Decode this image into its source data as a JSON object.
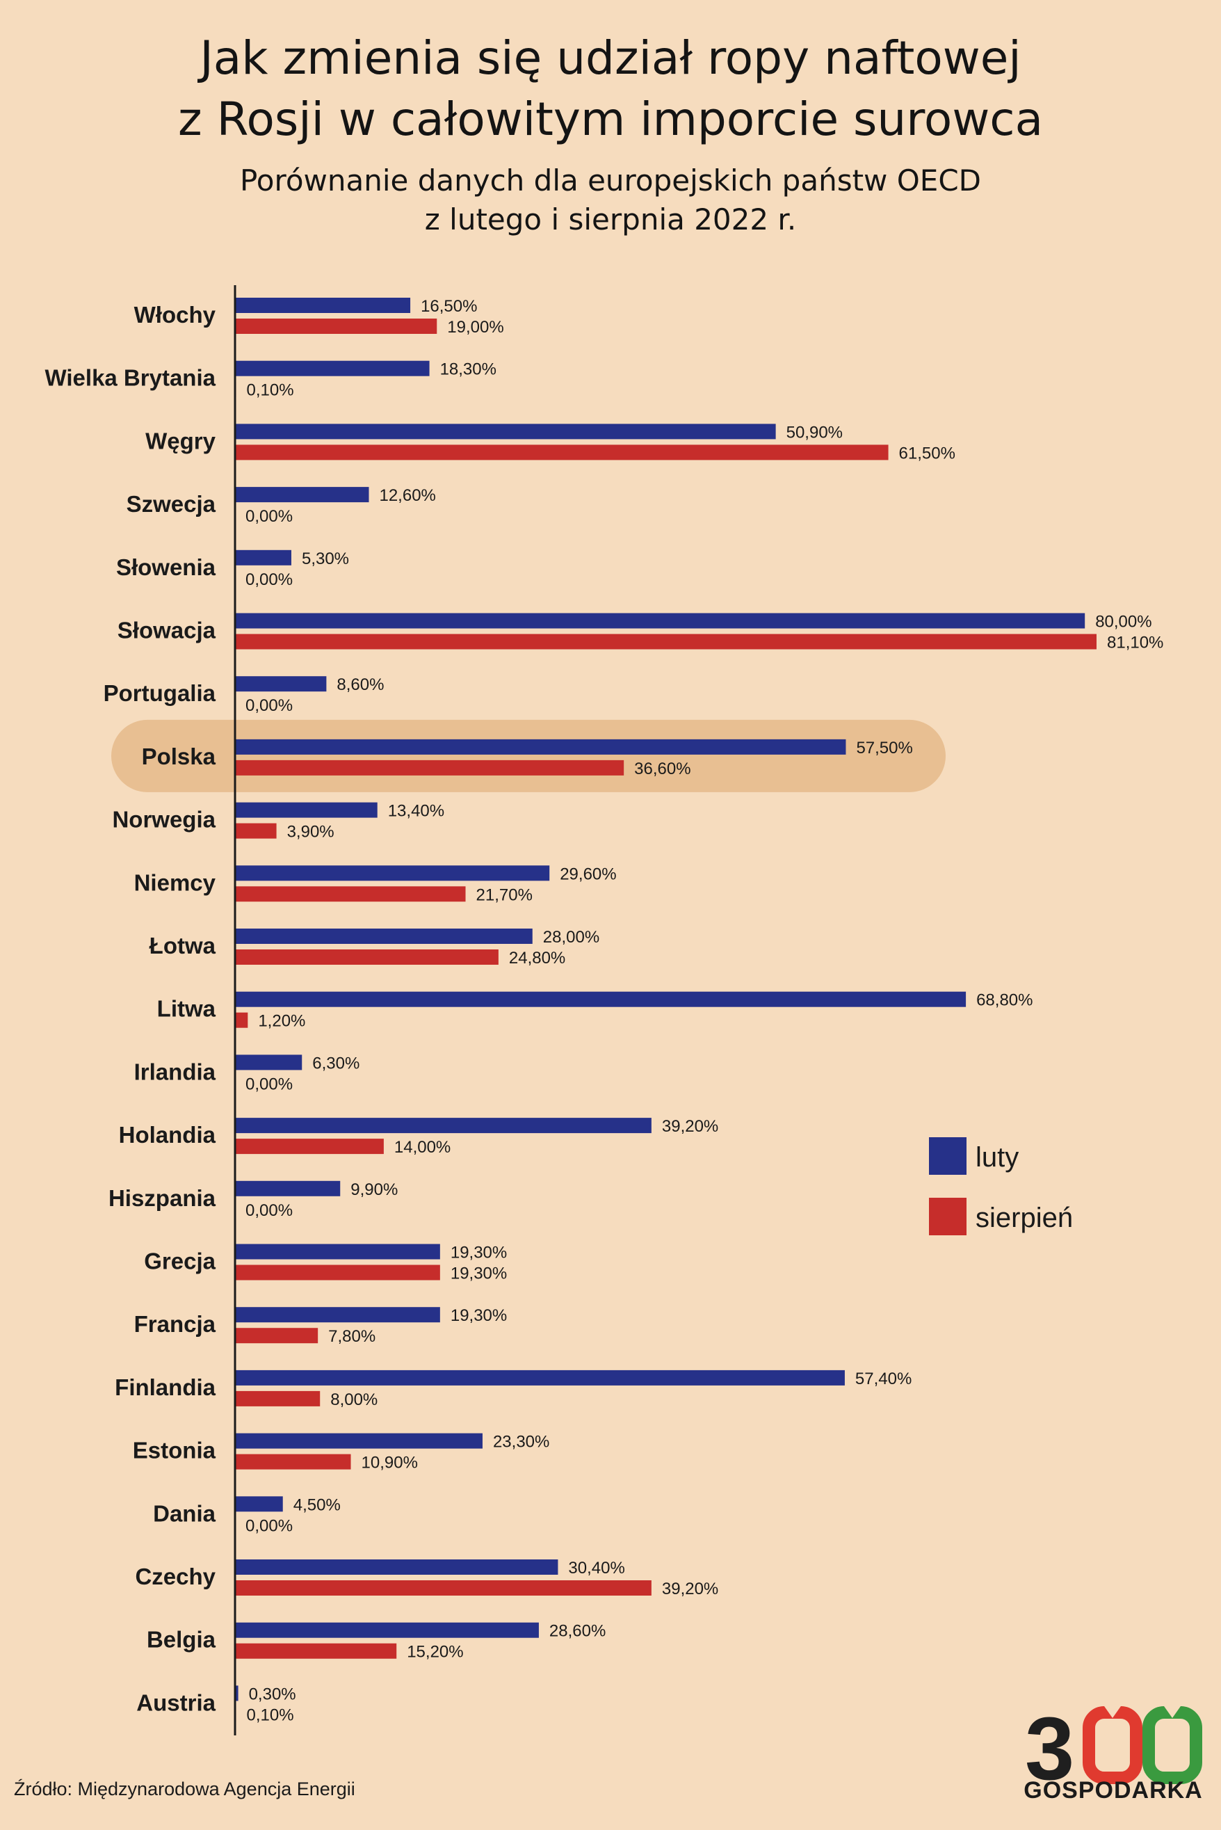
{
  "title": "Jak zmienia się udział ropy naftowej z Rosji w całowitym imporcie surowca",
  "title_lines": [
    "Jak zmienia się udział ropy naftowej",
    "z Rosji w całowitym imporcie surowca"
  ],
  "subtitle_lines": [
    "Porównanie danych dla europejskich państw OECD",
    "z lutego i sierpnia 2022 r."
  ],
  "source": "Źródło: Międzynarodowa Agencja Energii",
  "logo": {
    "number": "300",
    "text": "GOSPODARKA",
    "colors": [
      "#1f1f1f",
      "#e03a2f",
      "#3a9a3f"
    ]
  },
  "colors": {
    "luty": "#263189",
    "sierpien": "#c62d2b",
    "highlight": "#e8bf92",
    "background": "#f6dcbe"
  },
  "chart_data": {
    "type": "bar",
    "orientation": "horizontal",
    "categories": [
      "Włochy",
      "Wielka Brytania",
      "Węgry",
      "Szwecja",
      "Słowenia",
      "Słowacja",
      "Portugalia",
      "Polska",
      "Norwegia",
      "Niemcy",
      "Łotwa",
      "Litwa",
      "Irlandia",
      "Holandia",
      "Hiszpania",
      "Grecja",
      "Francja",
      "Finlandia",
      "Estonia",
      "Dania",
      "Czechy",
      "Belgia",
      "Austria"
    ],
    "highlight_category": "Polska",
    "series": [
      {
        "name": "luty",
        "color": "#263189",
        "values": [
          16.5,
          18.3,
          50.9,
          12.6,
          5.3,
          80.0,
          8.6,
          57.5,
          13.4,
          29.6,
          28.0,
          68.8,
          6.3,
          39.2,
          9.9,
          19.3,
          19.3,
          57.4,
          23.3,
          4.5,
          30.4,
          28.6,
          0.3
        ],
        "labels": [
          "16,50%",
          "18,30%",
          "50,90%",
          "12,60%",
          "5,30%",
          "80,00%",
          "8,60%",
          "57,50%",
          "13,40%",
          "29,60%",
          "28,00%",
          "68,80%",
          "6,30%",
          "39,20%",
          "9,90%",
          "19,30%",
          "19,30%",
          "57,40%",
          "23,30%",
          "4,50%",
          "30,40%",
          "28,60%",
          "0,30%"
        ]
      },
      {
        "name": "sierpień",
        "color": "#c62d2b",
        "values": [
          19.0,
          0.1,
          61.5,
          0.0,
          0.0,
          81.1,
          0.0,
          36.6,
          3.9,
          21.7,
          24.8,
          1.2,
          0.0,
          14.0,
          0.0,
          19.3,
          7.8,
          8.0,
          10.9,
          0.0,
          39.2,
          15.2,
          0.1
        ],
        "labels": [
          "19,00%",
          "0,10%",
          "61,50%",
          "0,00%",
          "0,00%",
          "81,10%",
          "0,00%",
          "36,60%",
          "3,90%",
          "21,70%",
          "24,80%",
          "1,20%",
          "0,00%",
          "14,00%",
          "0,00%",
          "19,30%",
          "7,80%",
          "8,00%",
          "10,90%",
          "0,00%",
          "39,20%",
          "15,20%",
          "0,10%"
        ]
      }
    ],
    "xlim": [
      0,
      81.1
    ],
    "legend": {
      "position": "right",
      "entries": [
        "luty",
        "sierpień"
      ]
    },
    "grid": false
  }
}
